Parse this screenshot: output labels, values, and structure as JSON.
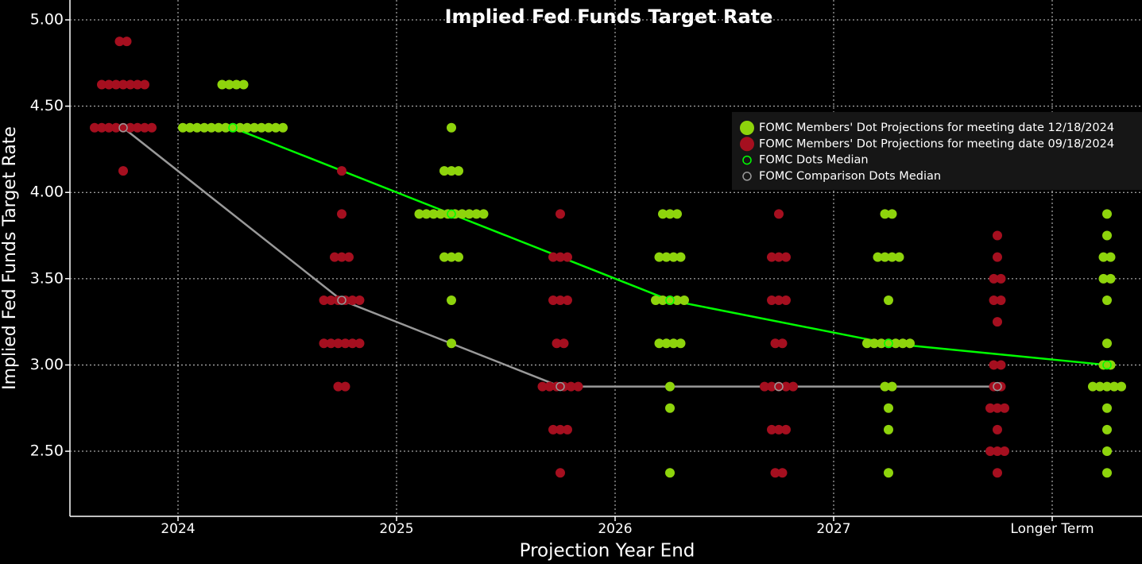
{
  "chart_data": {
    "type": "dot_plot",
    "title": "Implied Fed Funds Target Rate",
    "x_label": "Projection Year End",
    "y_label": "Implied Fed Funds Target Rate",
    "categories": [
      "2024",
      "2025",
      "2026",
      "2027",
      "Longer Term"
    ],
    "ylim": [
      2.125,
      5.1
    ],
    "yticks": [
      {
        "value": 2.5,
        "label": "2.50"
      },
      {
        "value": 3,
        "label": "3.00"
      },
      {
        "value": 3.5,
        "label": "3.50"
      },
      {
        "value": 4,
        "label": "4.00"
      },
      {
        "value": 4.5,
        "label": "4.50"
      },
      {
        "value": 5,
        "label": "5.00"
      }
    ],
    "grid": true,
    "legend": "upper right",
    "series": [
      {
        "name": "FOMC Members' Dot Projections for meeting date 12/18/2024",
        "color": "#8ed40c",
        "values": [
          [
            4.625,
            4.625,
            4.625,
            4.625,
            4.375,
            4.375,
            4.375,
            4.375,
            4.375,
            4.375,
            4.375,
            4.375,
            4.375,
            4.375,
            4.375,
            4.375,
            4.375,
            4.375,
            4.375
          ],
          [
            4.375,
            4.125,
            4.125,
            4.125,
            3.875,
            3.875,
            3.875,
            3.875,
            3.875,
            3.875,
            3.875,
            3.875,
            3.875,
            3.875,
            3.625,
            3.625,
            3.625,
            3.375,
            3.125
          ],
          [
            3.875,
            3.875,
            3.875,
            3.625,
            3.625,
            3.625,
            3.625,
            3.375,
            3.375,
            3.375,
            3.375,
            3.375,
            3.125,
            3.125,
            3.125,
            3.125,
            2.875,
            2.75,
            2.375
          ],
          [
            3.875,
            3.875,
            3.625,
            3.625,
            3.625,
            3.625,
            3.375,
            3.125,
            3.125,
            3.125,
            3.125,
            3.125,
            3.125,
            3.125,
            2.875,
            2.875,
            2.75,
            2.625,
            2.375
          ],
          [
            3.875,
            3.75,
            3.625,
            3.625,
            3.5,
            3.5,
            3.375,
            3.125,
            3.0,
            3.0,
            2.875,
            2.875,
            2.875,
            2.875,
            2.875,
            2.75,
            2.625,
            2.5,
            2.375
          ]
        ]
      },
      {
        "name": "FOMC Members' Dot Projections for meeting date 09/18/2024",
        "color": "#a50f1f",
        "values": [
          [
            4.875,
            4.875,
            4.625,
            4.625,
            4.625,
            4.625,
            4.625,
            4.625,
            4.625,
            4.375,
            4.375,
            4.375,
            4.375,
            4.375,
            4.375,
            4.375,
            4.375,
            4.375,
            4.125
          ],
          [
            4.125,
            3.875,
            3.625,
            3.625,
            3.625,
            3.375,
            3.375,
            3.375,
            3.375,
            3.375,
            3.375,
            3.125,
            3.125,
            3.125,
            3.125,
            3.125,
            3.125,
            2.875,
            2.875
          ],
          [
            3.875,
            3.625,
            3.625,
            3.625,
            3.375,
            3.375,
            3.375,
            3.125,
            3.125,
            2.875,
            2.875,
            2.875,
            2.875,
            2.875,
            2.875,
            2.625,
            2.625,
            2.625,
            2.375
          ],
          [
            3.875,
            3.625,
            3.625,
            3.625,
            3.375,
            3.375,
            3.375,
            3.125,
            3.125,
            2.875,
            2.875,
            2.875,
            2.875,
            2.875,
            2.625,
            2.625,
            2.625,
            2.375,
            2.375
          ],
          [
            3.75,
            3.625,
            3.5,
            3.5,
            3.375,
            3.375,
            3.25,
            3.0,
            3.0,
            2.875,
            2.875,
            2.75,
            2.75,
            2.75,
            2.625,
            2.5,
            2.5,
            2.5,
            2.375
          ]
        ]
      },
      {
        "name": "FOMC Dots Median",
        "color": "#00ff00",
        "values": [
          4.375,
          3.875,
          3.375,
          3.125,
          3.0
        ]
      },
      {
        "name": "FOMC Comparison Dots Median",
        "color": "#999999",
        "values": [
          4.375,
          3.375,
          2.875,
          2.875,
          2.875
        ]
      }
    ]
  }
}
